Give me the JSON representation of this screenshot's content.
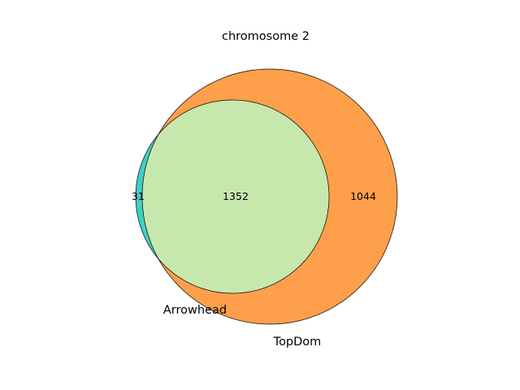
{
  "title": "chromosome 2",
  "sets": [
    {
      "name": "Arrowhead",
      "color": "#3fcfc6"
    },
    {
      "name": "TopDom",
      "color": "#fd9f4b"
    }
  ],
  "overlap_color": "#c7e8ad",
  "counts": {
    "only_a": "31",
    "both": "1352",
    "only_b": "1044"
  },
  "chart_data": {
    "type": "venn",
    "title": "chromosome 2",
    "sets": [
      "Arrowhead",
      "TopDom"
    ],
    "regions": [
      {
        "sets": [
          "Arrowhead"
        ],
        "value": 31
      },
      {
        "sets": [
          "Arrowhead",
          "TopDom"
        ],
        "value": 1352
      },
      {
        "sets": [
          "TopDom"
        ],
        "value": 1044
      }
    ]
  }
}
